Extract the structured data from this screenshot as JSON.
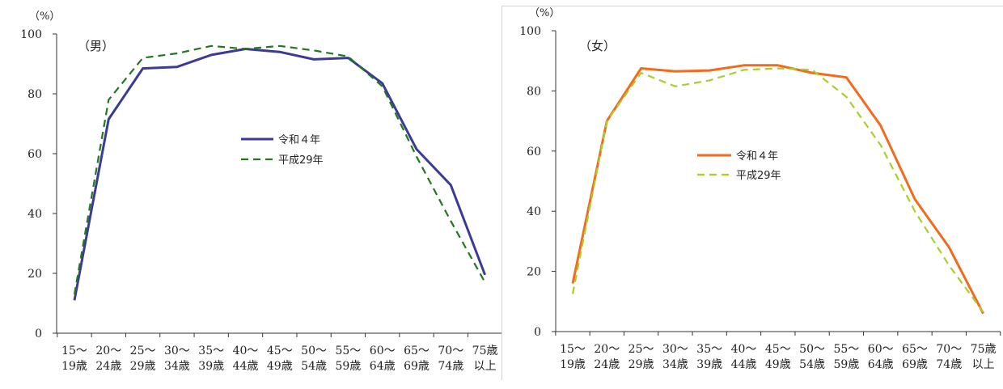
{
  "chart_data": [
    {
      "type": "line",
      "panel_label": "（男）",
      "y_unit": "（%）",
      "ylim": [
        0,
        100
      ],
      "yticks": [
        0,
        20,
        40,
        60,
        80,
        100
      ],
      "categories": [
        [
          "15～",
          "19歳"
        ],
        [
          "20～",
          "24歳"
        ],
        [
          "25～",
          "29歳"
        ],
        [
          "30～",
          "34歳"
        ],
        [
          "35～",
          "39歳"
        ],
        [
          "40～",
          "44歳"
        ],
        [
          "45～",
          "49歳"
        ],
        [
          "50～",
          "54歳"
        ],
        [
          "55～",
          "59歳"
        ],
        [
          "60～",
          "64歳"
        ],
        [
          "65～",
          "69歳"
        ],
        [
          "70～",
          "74歳"
        ],
        [
          "75歳",
          "以上"
        ]
      ],
      "grid": false,
      "legend_position": "center-right",
      "series": [
        {
          "name": "令和４年",
          "style": "solid",
          "color": "#3b3b96",
          "values": [
            11,
            71.5,
            88.5,
            89,
            93,
            95,
            94,
            91.5,
            92,
            83.5,
            61.5,
            49.5,
            19.5
          ]
        },
        {
          "name": "平成29年",
          "style": "dashed",
          "color": "#1f7a1f",
          "values": [
            13,
            78,
            92,
            93.5,
            96,
            95,
            96,
            94.5,
            92.5,
            82.5,
            59,
            37.5,
            17
          ]
        }
      ]
    },
    {
      "type": "line",
      "panel_label": "（女）",
      "y_unit": "（%）",
      "ylim": [
        0,
        100
      ],
      "yticks": [
        0,
        20,
        40,
        60,
        80,
        100
      ],
      "categories": [
        [
          "15～",
          "19歳"
        ],
        [
          "20～",
          "24歳"
        ],
        [
          "25～",
          "29歳"
        ],
        [
          "30～",
          "34歳"
        ],
        [
          "35～",
          "39歳"
        ],
        [
          "40～",
          "44歳"
        ],
        [
          "45～",
          "49歳"
        ],
        [
          "50～",
          "54歳"
        ],
        [
          "55～",
          "59歳"
        ],
        [
          "60～",
          "64歳"
        ],
        [
          "65～",
          "69歳"
        ],
        [
          "70～",
          "74歳"
        ],
        [
          "75歳",
          "以上"
        ]
      ],
      "grid": false,
      "legend_position": "center",
      "series": [
        {
          "name": "令和４年",
          "style": "solid",
          "color": "#f26a1b",
          "values": [
            16,
            70,
            87.5,
            86.5,
            86.8,
            88.5,
            88.5,
            86,
            84.5,
            68.5,
            44,
            28,
            6
          ]
        },
        {
          "name": "平成29年",
          "style": "dashed",
          "color": "#a8cf2a",
          "values": [
            12.5,
            70,
            86,
            81.5,
            83.5,
            87,
            87.5,
            87,
            78,
            62,
            40,
            22,
            6.5
          ]
        }
      ]
    }
  ]
}
